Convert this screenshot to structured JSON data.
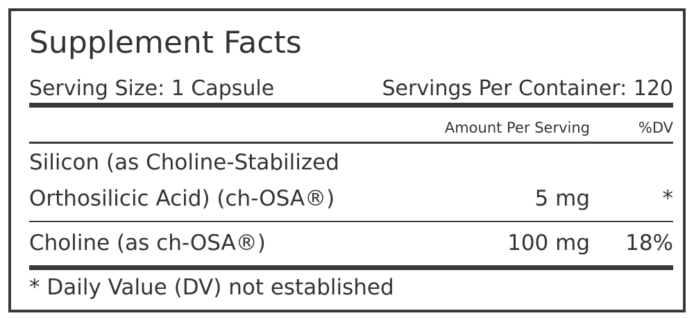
{
  "header": {
    "title": "Supplement Facts",
    "serving_size": "Serving Size: 1 Capsule",
    "servings_per_container": "Servings Per Container: 120"
  },
  "table": {
    "columns": [
      "Amount Per Serving",
      "%DV"
    ],
    "rows": [
      {
        "name_lines": [
          "Silicon (as Choline-Stabilized",
          "Orthosilicic Acid) (ch-OSA®)"
        ],
        "amount": "5 mg",
        "dv": "*"
      },
      {
        "name_lines": [
          "Choline (as ch-OSA®)"
        ],
        "amount": "100 mg",
        "dv": "18%"
      }
    ]
  },
  "footnote": "* Daily Value (DV) not established"
}
